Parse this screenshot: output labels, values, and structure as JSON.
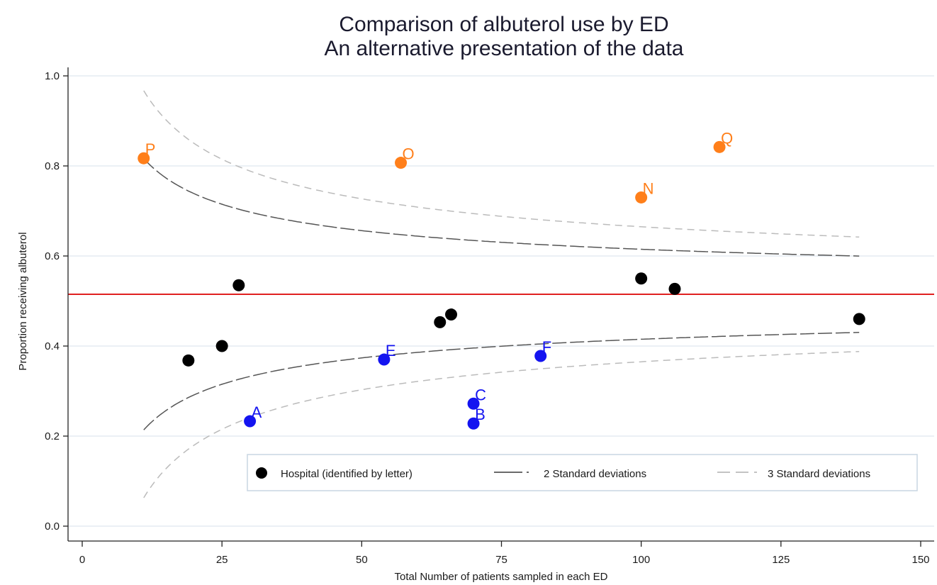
{
  "chart_data": {
    "type": "scatter",
    "title": "Comparison of albuterol use by ED",
    "subtitle": "An alternative presentation of the data",
    "xlabel": "Total Number of patients sampled in each ED",
    "ylabel": "Proportion receiving albuterol",
    "xlim": [
      0,
      150
    ],
    "ylim": [
      0,
      1
    ],
    "x_ticks": [
      "0",
      "25",
      "50",
      "75",
      "100",
      "125",
      "150"
    ],
    "y_ticks": [
      "0.0",
      "0.2",
      "0.4",
      "0.6",
      "0.8",
      "1.0"
    ],
    "grid": true,
    "reference_line": {
      "y": 0.515,
      "color": "#e02020"
    },
    "points": [
      {
        "x": 19,
        "y": 0.368,
        "label": "",
        "color": "#000000"
      },
      {
        "x": 25,
        "y": 0.4,
        "label": "",
        "color": "#000000"
      },
      {
        "x": 28,
        "y": 0.535,
        "label": "",
        "color": "#000000"
      },
      {
        "x": 64,
        "y": 0.453,
        "label": "",
        "color": "#000000"
      },
      {
        "x": 66,
        "y": 0.47,
        "label": "",
        "color": "#000000"
      },
      {
        "x": 100,
        "y": 0.55,
        "label": "",
        "color": "#000000"
      },
      {
        "x": 106,
        "y": 0.527,
        "label": "",
        "color": "#000000"
      },
      {
        "x": 139,
        "y": 0.46,
        "label": "",
        "color": "#000000"
      },
      {
        "x": 11,
        "y": 0.817,
        "label": "P",
        "color": "#ff7f1a"
      },
      {
        "x": 57,
        "y": 0.807,
        "label": "O",
        "color": "#ff7f1a"
      },
      {
        "x": 100,
        "y": 0.73,
        "label": "N",
        "color": "#ff7f1a"
      },
      {
        "x": 114,
        "y": 0.842,
        "label": "Q",
        "color": "#ff7f1a"
      },
      {
        "x": 30,
        "y": 0.233,
        "label": "A",
        "color": "#1414f0"
      },
      {
        "x": 54,
        "y": 0.37,
        "label": "E",
        "color": "#1414f0"
      },
      {
        "x": 70,
        "y": 0.272,
        "label": "C",
        "color": "#1414f0"
      },
      {
        "x": 70,
        "y": 0.228,
        "label": "B",
        "color": "#1414f0"
      },
      {
        "x": 82,
        "y": 0.378,
        "label": "F",
        "color": "#1414f0"
      }
    ],
    "series": [
      {
        "name": "2 Standard deviations",
        "color": "#555555",
        "p": 0.515,
        "k": 2,
        "x_start": 11,
        "x_end": 139
      },
      {
        "name": "3 Standard deviations",
        "color": "#bbbbbb",
        "p": 0.515,
        "k": 3,
        "x_start": 11,
        "x_end": 139
      }
    ],
    "legend": {
      "position": "bottom-right",
      "items": [
        {
          "label": "Hospital (identified by letter)",
          "kind": "marker"
        },
        {
          "label": "2 Standard deviations",
          "kind": "dark-dash"
        },
        {
          "label": "3 Standard deviations",
          "kind": "light-dash"
        }
      ]
    }
  }
}
